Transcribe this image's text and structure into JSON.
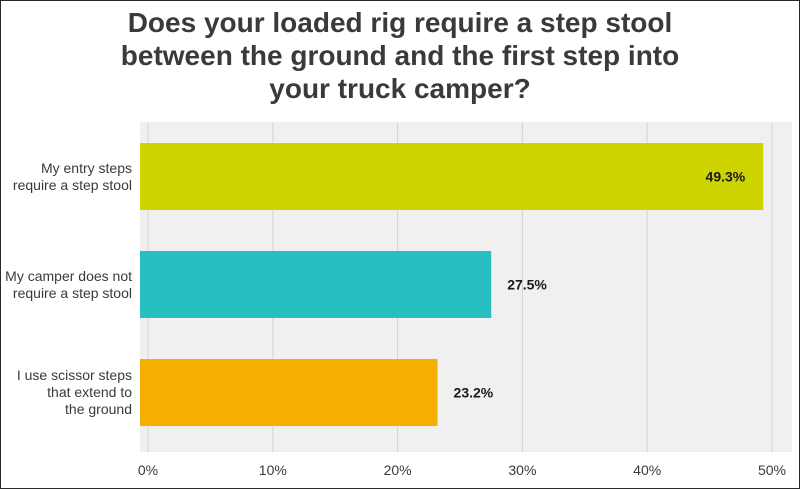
{
  "chart_data": {
    "type": "bar",
    "orientation": "horizontal",
    "title": "Does your loaded rig require a step stool\nbetween the ground and the first step into\nyour truck camper?",
    "categories": [
      "My entry steps\nrequire a step stool",
      "My camper does not\nrequire a step stool",
      "I use scissor steps\nthat extend to\nthe ground"
    ],
    "values": [
      49.3,
      27.5,
      23.2
    ],
    "value_labels": [
      "49.3%",
      "27.5%",
      "23.2%"
    ],
    "colors": [
      "#cdd400",
      "#27bfbf",
      "#f5af00"
    ],
    "xlim": [
      0,
      50
    ],
    "ticks": [
      0,
      10,
      20,
      30,
      40,
      50
    ],
    "tick_labels": [
      "0%",
      "10%",
      "20%",
      "30%",
      "40%",
      "50%"
    ],
    "grid": true,
    "legend": "none"
  }
}
